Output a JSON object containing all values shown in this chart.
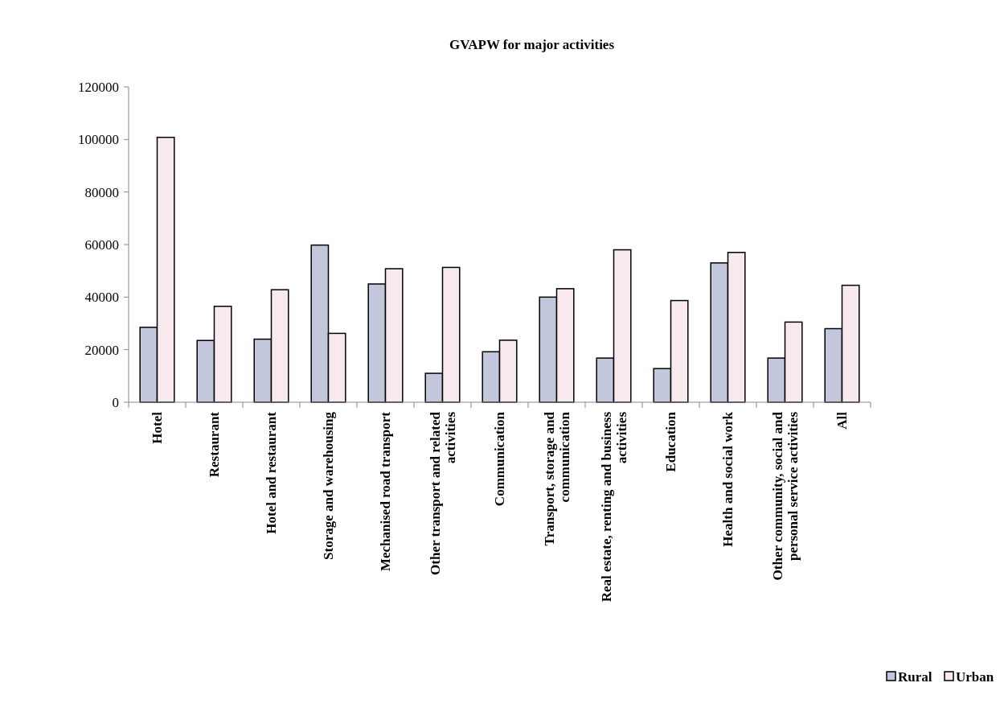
{
  "chart_data": {
    "type": "bar",
    "title": "GVAPW for major activities",
    "categories": [
      "Hotel",
      "Restaurant",
      "Hotel and restaurant",
      "Storage and warehousing",
      "Mechanised road transport",
      "Other transport and related activities",
      "Communication",
      "Transport, storage and communication",
      "Real estate, renting and business activities",
      "Education",
      "Health and social work",
      "Other community, social and personal service activities",
      "All"
    ],
    "series": [
      {
        "name": "Rural",
        "color": "#c3c7dc",
        "values": [
          28500,
          23500,
          24000,
          59800,
          45000,
          11000,
          19200,
          40000,
          16800,
          12800,
          53000,
          16800,
          28000
        ]
      },
      {
        "name": "Urban",
        "color": "#f7e9ee",
        "values": [
          100800,
          36500,
          42800,
          26200,
          50800,
          51300,
          23600,
          43200,
          58000,
          38700,
          57000,
          30500,
          44500
        ]
      }
    ],
    "ylim": [
      0,
      120000
    ],
    "yticks": [
      0,
      20000,
      40000,
      60000,
      80000,
      100000,
      120000
    ],
    "grid": false,
    "legend": "bottom right"
  }
}
